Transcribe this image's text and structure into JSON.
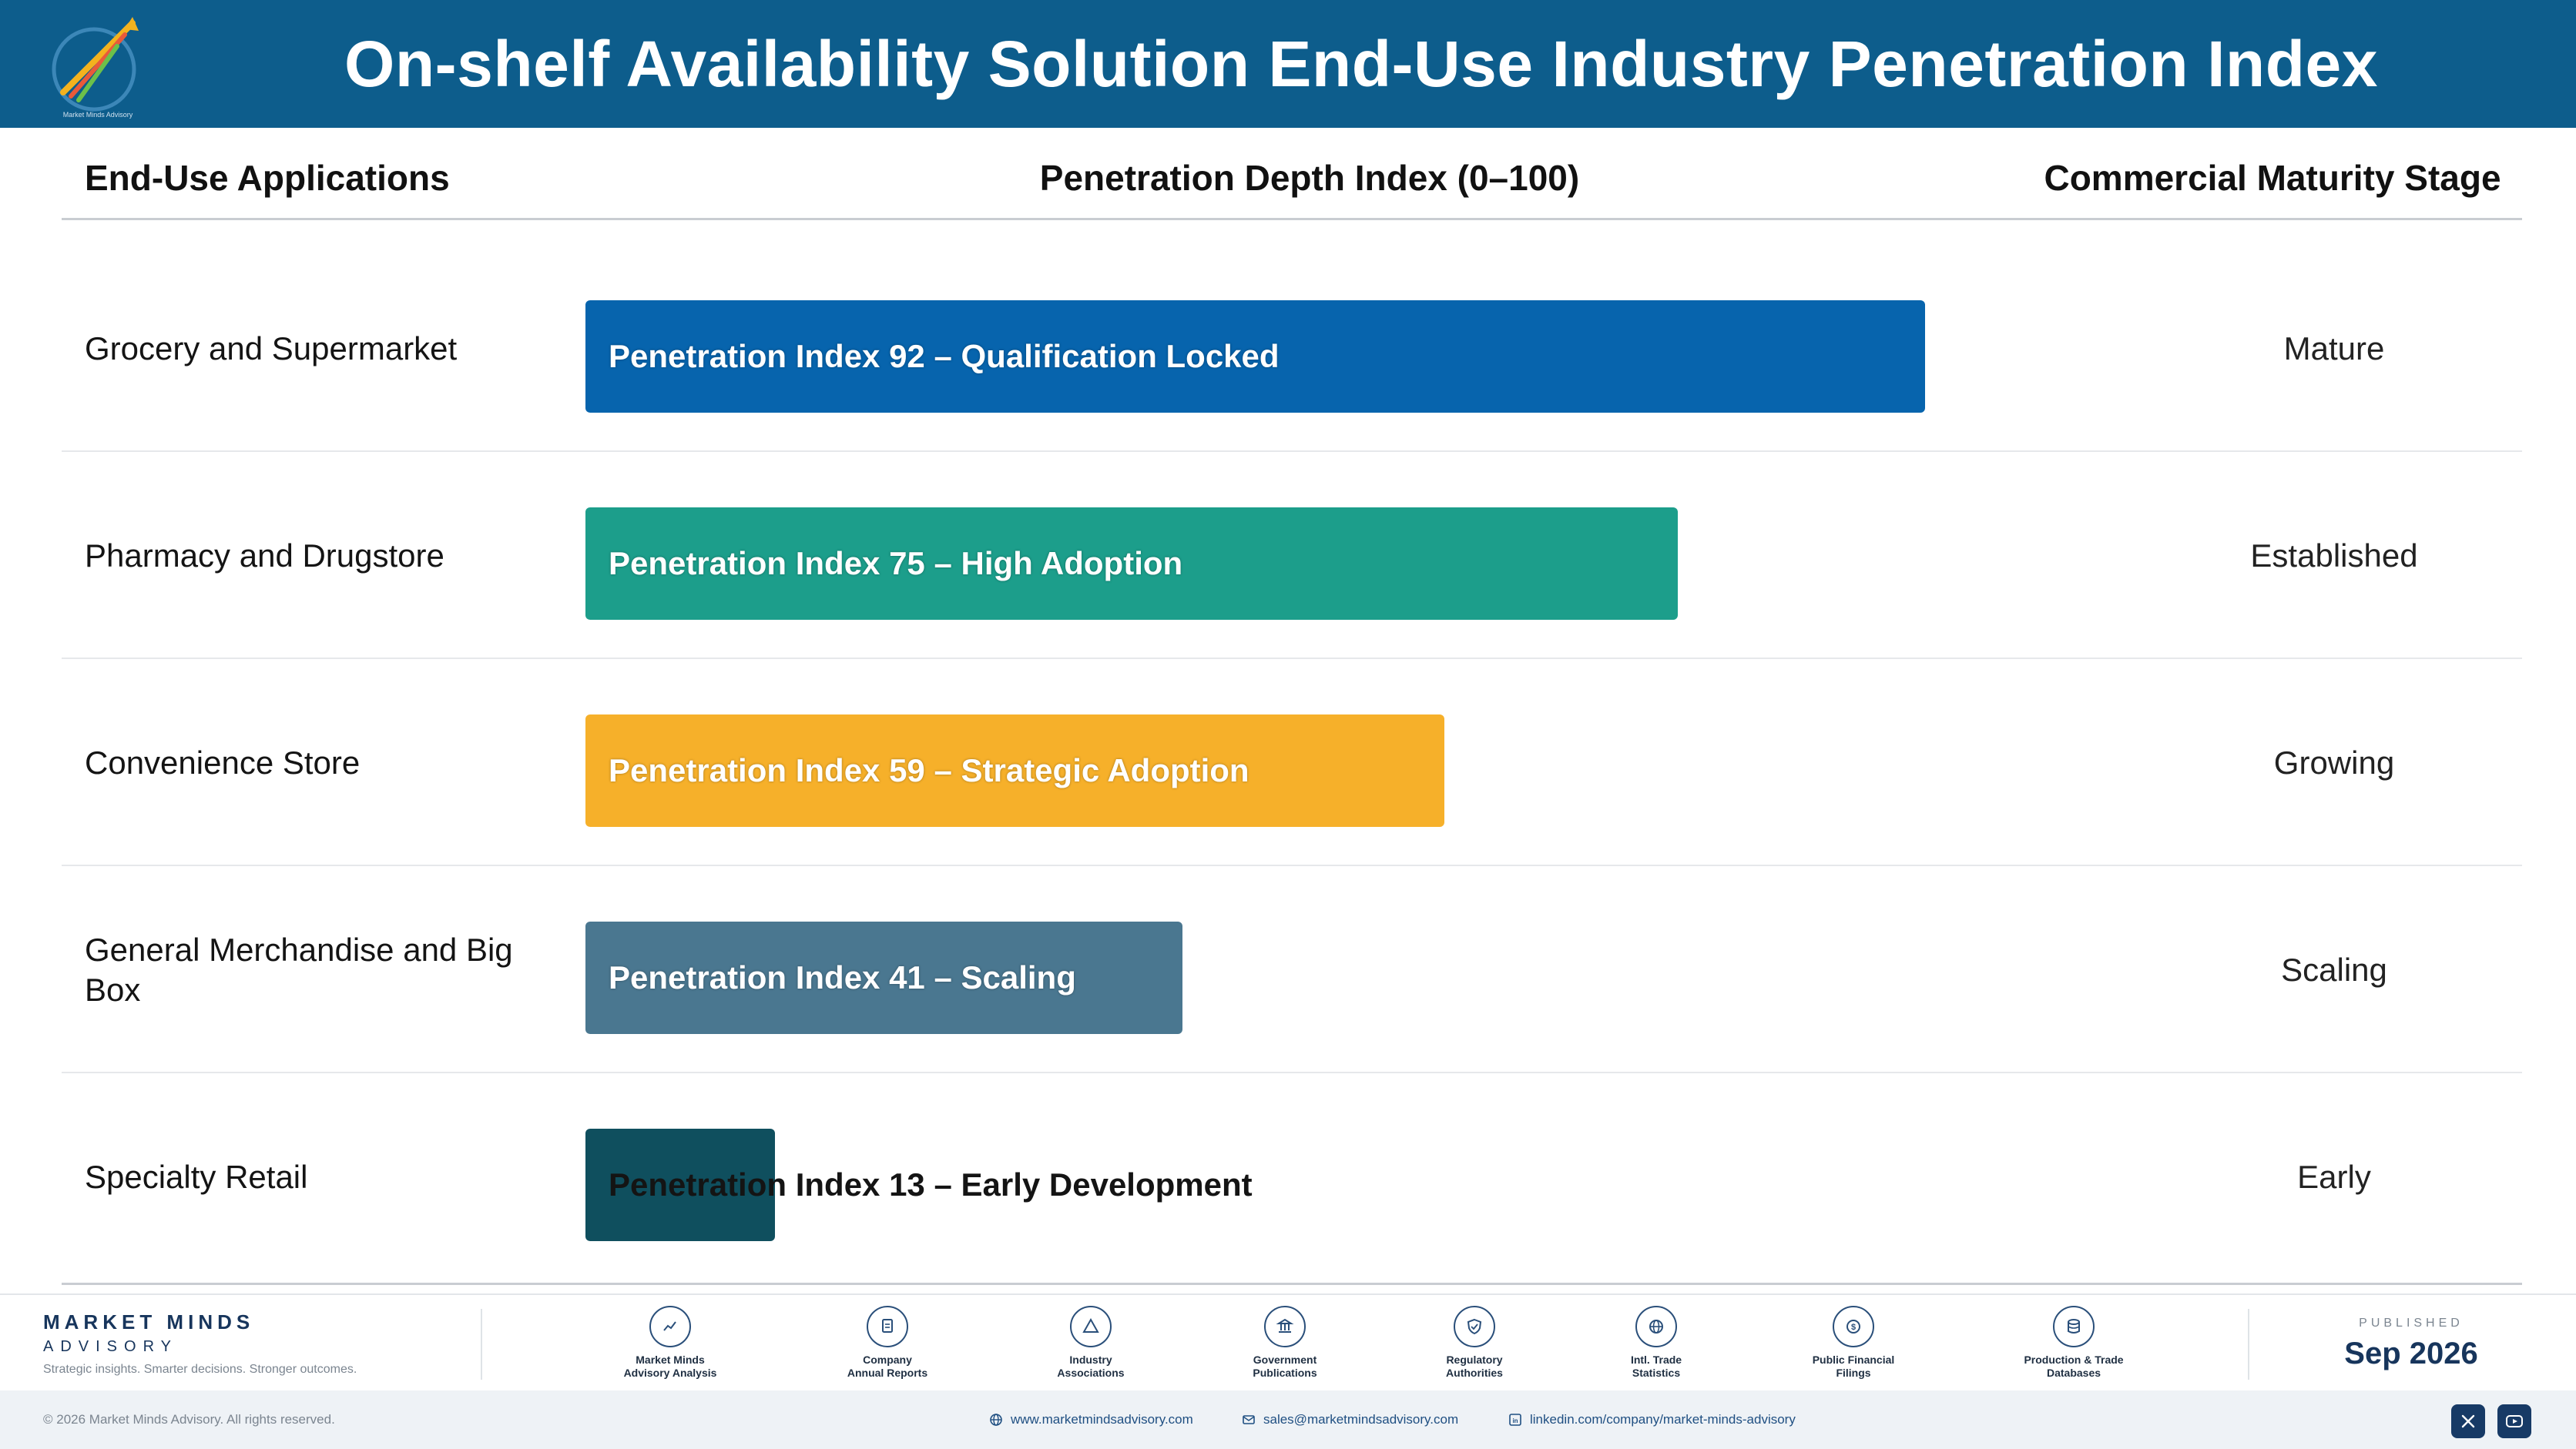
{
  "header": {
    "title": "On-shelf Availability Solution End-Use Industry Penetration Index",
    "logo_icon": "market-minds-logo"
  },
  "columns": {
    "applications": "End-Use Applications",
    "depth": "Penetration Depth Index (0–100)",
    "stage": "Commercial Maturity Stage"
  },
  "chart_data": {
    "type": "bar",
    "orientation": "horizontal",
    "xlim": [
      0,
      100
    ],
    "categories": [
      "Grocery and Supermarket",
      "Pharmacy and Drugstore",
      "Convenience Store",
      "General Merchandise and Big Box",
      "Specialty Retail"
    ],
    "values": [
      92,
      75,
      59,
      41,
      13
    ],
    "bar_labels": [
      "Penetration Index 92 – Qualification Locked",
      "Penetration Index 75 – High Adoption",
      "Penetration Index 59 – Strategic Adoption",
      "Penetration Index 41 – Scaling",
      "Penetration Index 13 – Early Development"
    ],
    "stages": [
      "Mature",
      "Established",
      "Growing",
      "Scaling",
      "Early"
    ],
    "colors": [
      "#0764ad",
      "#1c9e8b",
      "#f6b02a",
      "#4a7790",
      "#0f4f5e"
    ]
  },
  "footer": {
    "brand_name": "MARKET MINDS",
    "brand_sub": "ADVISORY",
    "tagline": "Strategic insights. Smarter decisions. Stronger outcomes.",
    "sources": [
      {
        "line1": "Market Minds",
        "line2": "Advisory Analysis",
        "icon": "trend-chart-icon"
      },
      {
        "line1": "Company",
        "line2": "Annual Reports",
        "icon": "document-icon"
      },
      {
        "line1": "Industry",
        "line2": "Associations",
        "icon": "network-icon"
      },
      {
        "line1": "Government",
        "line2": "Publications",
        "icon": "government-building-icon"
      },
      {
        "line1": "Regulatory",
        "line2": "Authorities",
        "icon": "shield-check-icon"
      },
      {
        "line1": "Intl. Trade",
        "line2": "Statistics",
        "icon": "globe-icon"
      },
      {
        "line1": "Public Financial",
        "line2": "Filings",
        "icon": "currency-icon"
      },
      {
        "line1": "Production & Trade",
        "line2": "Databases",
        "icon": "database-icon"
      }
    ],
    "published_label": "PUBLISHED",
    "published_date": "Sep 2026",
    "copyright": "© 2026 Market Minds Advisory. All rights reserved.",
    "website": "www.marketmindsadvisory.com",
    "email": "sales@marketmindsadvisory.com",
    "linkedin": "linkedin.com/company/market-minds-advisory",
    "social": [
      "x-icon",
      "youtube-icon"
    ]
  }
}
